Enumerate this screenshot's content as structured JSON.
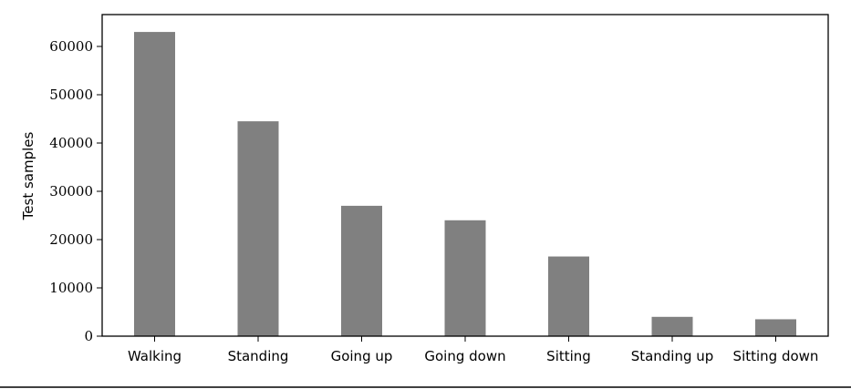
{
  "chart_data": {
    "type": "bar",
    "title": "",
    "xlabel": "",
    "ylabel": "Test samples",
    "categories": [
      "Walking",
      "Standing",
      "Going up",
      "Going down",
      "Sitting",
      "Standing up",
      "Sitting down"
    ],
    "values": [
      63000,
      44500,
      27000,
      24000,
      16500,
      4000,
      3500
    ],
    "ylim": [
      0,
      66600
    ],
    "yticks": [
      0,
      10000,
      20000,
      30000,
      40000,
      50000,
      60000
    ],
    "ytick_labels": [
      "0",
      "10000",
      "20000",
      "30000",
      "40000",
      "50000",
      "60000"
    ],
    "bar_color": "#808080",
    "grid": false,
    "legend": "none"
  }
}
